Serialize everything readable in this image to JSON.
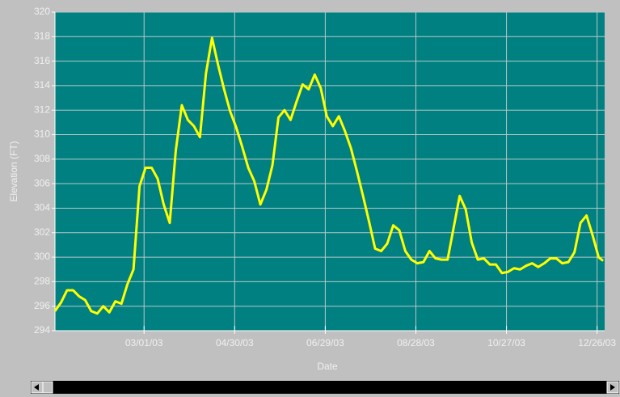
{
  "chart_data": {
    "type": "line",
    "xlabel": "Date",
    "ylabel": "Elevation (FT)",
    "x": [
      "2003-01-01",
      "2003-01-05",
      "2003-01-09",
      "2003-01-13",
      "2003-01-17",
      "2003-01-21",
      "2003-01-25",
      "2003-01-29",
      "2003-02-02",
      "2003-02-06",
      "2003-02-10",
      "2003-02-14",
      "2003-02-18",
      "2003-02-22",
      "2003-02-26",
      "2003-03-02",
      "2003-03-06",
      "2003-03-10",
      "2003-03-14",
      "2003-03-18",
      "2003-03-22",
      "2003-03-26",
      "2003-03-30",
      "2003-04-03",
      "2003-04-07",
      "2003-04-11",
      "2003-04-15",
      "2003-04-19",
      "2003-04-23",
      "2003-04-27",
      "2003-05-01",
      "2003-05-05",
      "2003-05-09",
      "2003-05-13",
      "2003-05-17",
      "2003-05-21",
      "2003-05-25",
      "2003-05-29",
      "2003-06-02",
      "2003-06-06",
      "2003-06-10",
      "2003-06-14",
      "2003-06-18",
      "2003-06-22",
      "2003-06-26",
      "2003-06-30",
      "2003-07-04",
      "2003-07-08",
      "2003-07-12",
      "2003-07-16",
      "2003-07-20",
      "2003-07-24",
      "2003-07-28",
      "2003-08-01",
      "2003-08-05",
      "2003-08-09",
      "2003-08-13",
      "2003-08-17",
      "2003-08-21",
      "2003-08-25",
      "2003-08-29",
      "2003-09-02",
      "2003-09-06",
      "2003-09-10",
      "2003-09-14",
      "2003-09-18",
      "2003-09-22",
      "2003-09-26",
      "2003-09-30",
      "2003-10-04",
      "2003-10-08",
      "2003-10-12",
      "2003-10-16",
      "2003-10-20",
      "2003-10-24",
      "2003-10-28",
      "2003-11-01",
      "2003-11-05",
      "2003-11-09",
      "2003-11-13",
      "2003-11-17",
      "2003-11-21",
      "2003-11-25",
      "2003-11-29",
      "2003-12-03",
      "2003-12-07",
      "2003-12-11",
      "2003-12-15",
      "2003-12-19",
      "2003-12-23",
      "2003-12-27",
      "2003-12-30"
    ],
    "series": [
      {
        "color": "#ffff00",
        "values": [
          295.6,
          296.3,
          297.3,
          297.3,
          296.8,
          296.5,
          295.6,
          295.4,
          296.0,
          295.5,
          296.4,
          296.2,
          297.8,
          299.0,
          305.8,
          307.3,
          307.3,
          306.4,
          304.3,
          302.8,
          308.7,
          312.4,
          311.2,
          310.7,
          309.8,
          315.0,
          317.9,
          315.7,
          313.7,
          311.9,
          310.6,
          309.0,
          307.3,
          306.2,
          304.3,
          305.5,
          307.5,
          311.4,
          312.0,
          311.2,
          312.7,
          314.1,
          313.7,
          314.9,
          313.8,
          311.5,
          310.7,
          311.5,
          310.3,
          308.9,
          307.0,
          305.0,
          302.9,
          300.7,
          300.5,
          301.1,
          302.6,
          302.2,
          300.5,
          299.8,
          299.5,
          299.6,
          300.5,
          299.9,
          299.8,
          299.8,
          302.4,
          305.0,
          303.9,
          301.2,
          299.8,
          299.9,
          299.4,
          299.4,
          298.7,
          298.8,
          299.1,
          299.0,
          299.3,
          299.5,
          299.2,
          299.5,
          299.9,
          299.9,
          299.5,
          299.6,
          300.4,
          302.8,
          303.4,
          301.8,
          300.0,
          299.7
        ]
      }
    ],
    "xlim": [
      "2003-01-01",
      "2003-12-31"
    ],
    "xticks": [
      {
        "value": "2003-03-01",
        "label": "03/01/03"
      },
      {
        "value": "2003-04-30",
        "label": "04/30/03"
      },
      {
        "value": "2003-06-29",
        "label": "06/29/03"
      },
      {
        "value": "2003-08-28",
        "label": "08/28/03"
      },
      {
        "value": "2003-10-27",
        "label": "10/27/03"
      },
      {
        "value": "2003-12-26",
        "label": "12/26/03"
      }
    ],
    "ylim": [
      294,
      320
    ],
    "yticks": [
      294,
      296,
      298,
      300,
      302,
      304,
      306,
      308,
      310,
      312,
      314,
      316,
      318,
      320
    ],
    "grid": true,
    "background": "#008080"
  }
}
